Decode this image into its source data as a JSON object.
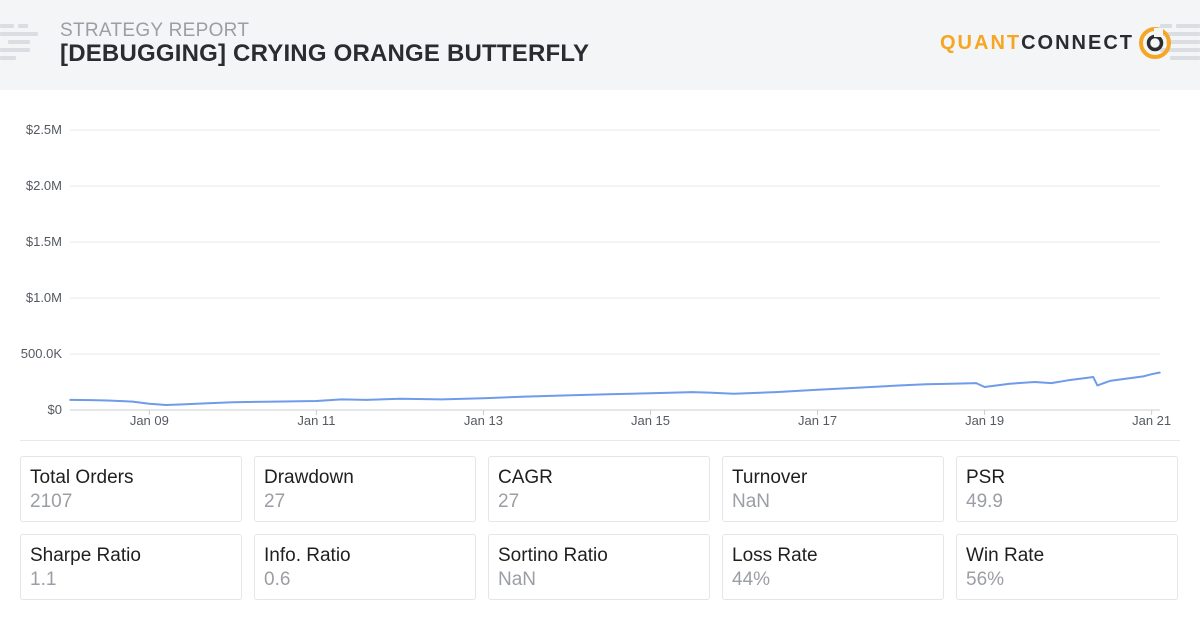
{
  "header": {
    "eyebrow": "STRATEGY REPORT",
    "title": "[DEBUGGING] CRYING ORANGE BUTTERFLY",
    "logo_part1": "QUANT",
    "logo_part2": "CONNECT"
  },
  "colors": {
    "accent": "#f5a623",
    "line": "#6f9bea",
    "text_dark": "#2a2c31",
    "muted": "#9b9ea4"
  },
  "chart_data": {
    "type": "line",
    "title": "",
    "xlabel": "",
    "ylabel": "",
    "ylim": [
      0,
      2500000
    ],
    "y_ticks": [
      {
        "value": 0,
        "label": "$0"
      },
      {
        "value": 500000,
        "label": "500.0K"
      },
      {
        "value": 1000000,
        "label": "$1.0M"
      },
      {
        "value": 1500000,
        "label": "$1.5M"
      },
      {
        "value": 2000000,
        "label": "$2.0M"
      },
      {
        "value": 2500000,
        "label": "$2.5M"
      }
    ],
    "xlim": [
      2008.05,
      2021.1
    ],
    "x_ticks": [
      {
        "value": 2009,
        "label": "Jan 09"
      },
      {
        "value": 2011,
        "label": "Jan 11"
      },
      {
        "value": 2013,
        "label": "Jan 13"
      },
      {
        "value": 2015,
        "label": "Jan 15"
      },
      {
        "value": 2017,
        "label": "Jan 17"
      },
      {
        "value": 2019,
        "label": "Jan 19"
      },
      {
        "value": 2021,
        "label": "Jan 21"
      }
    ],
    "grid": true,
    "series": [
      {
        "x": [
          2008.05,
          2008.3,
          2008.5,
          2008.8,
          2009.0,
          2009.2,
          2009.4,
          2009.7,
          2010.0,
          2010.5,
          2011.0,
          2011.3,
          2011.6,
          2012.0,
          2012.5,
          2013.0,
          2013.5,
          2014.0,
          2014.5,
          2015.0,
          2015.5,
          2015.7,
          2016.0,
          2016.5,
          2017.0,
          2017.5,
          2018.0,
          2018.3,
          2018.6,
          2018.9,
          2019.0,
          2019.3,
          2019.6,
          2019.8,
          2020.0,
          2020.2,
          2020.3,
          2020.35,
          2020.5,
          2020.7,
          2020.9,
          2021.0,
          2021.1
        ],
        "values": [
          90000,
          88000,
          85000,
          75000,
          55000,
          45000,
          50000,
          60000,
          70000,
          75000,
          80000,
          95000,
          90000,
          100000,
          95000,
          105000,
          120000,
          130000,
          140000,
          150000,
          160000,
          155000,
          145000,
          160000,
          180000,
          200000,
          220000,
          230000,
          235000,
          240000,
          205000,
          235000,
          250000,
          240000,
          265000,
          285000,
          295000,
          220000,
          260000,
          280000,
          300000,
          320000,
          335000
        ]
      }
    ]
  },
  "metrics": [
    {
      "label": "Total Orders",
      "value": "2107"
    },
    {
      "label": "Drawdown",
      "value": "27"
    },
    {
      "label": "CAGR",
      "value": "27"
    },
    {
      "label": "Turnover",
      "value": "NaN"
    },
    {
      "label": "PSR",
      "value": "49.9"
    },
    {
      "label": "Sharpe Ratio",
      "value": "1.1"
    },
    {
      "label": "Info. Ratio",
      "value": "0.6"
    },
    {
      "label": "Sortino Ratio",
      "value": "NaN"
    },
    {
      "label": "Loss Rate",
      "value": "44%"
    },
    {
      "label": "Win Rate",
      "value": "56%"
    }
  ]
}
